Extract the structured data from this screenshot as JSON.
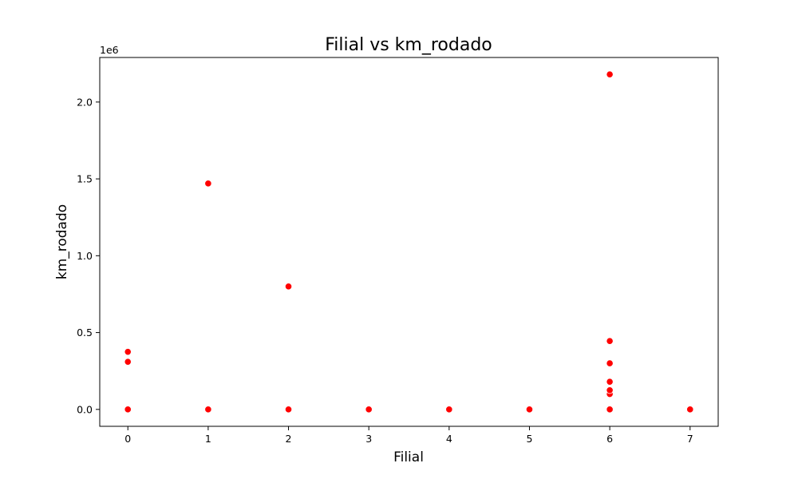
{
  "chart_data": {
    "type": "scatter",
    "title": "Filial vs km_rodado",
    "xlabel": "Filial",
    "ylabel": "km_rodado",
    "y_offset_label": "1e6",
    "xlim": [
      -0.35,
      7.35
    ],
    "ylim": [
      -0.11,
      2.29
    ],
    "y_scale_factor": 1000000,
    "x_ticks": [
      0,
      1,
      2,
      3,
      4,
      5,
      6,
      7
    ],
    "x_tick_labels": [
      "0",
      "1",
      "2",
      "3",
      "4",
      "5",
      "6",
      "7"
    ],
    "y_ticks": [
      0.0,
      0.5,
      1.0,
      1.5,
      2.0
    ],
    "y_tick_labels": [
      "0.0",
      "0.5",
      "1.0",
      "1.5",
      "2.0"
    ],
    "grid": false,
    "marker_color": "#ff0000",
    "points": [
      {
        "x": 0,
        "y": 0.0
      },
      {
        "x": 0,
        "y": 0.31
      },
      {
        "x": 0,
        "y": 0.375
      },
      {
        "x": 1,
        "y": 0.0
      },
      {
        "x": 1,
        "y": 1.47
      },
      {
        "x": 2,
        "y": 0.0
      },
      {
        "x": 2,
        "y": 0.8
      },
      {
        "x": 3,
        "y": 0.0
      },
      {
        "x": 4,
        "y": 0.0
      },
      {
        "x": 5,
        "y": 0.0
      },
      {
        "x": 6,
        "y": 0.0
      },
      {
        "x": 6,
        "y": 0.1
      },
      {
        "x": 6,
        "y": 0.125
      },
      {
        "x": 6,
        "y": 0.18
      },
      {
        "x": 6,
        "y": 0.3
      },
      {
        "x": 6,
        "y": 0.445
      },
      {
        "x": 6,
        "y": 2.18
      },
      {
        "x": 7,
        "y": 0.0
      }
    ]
  }
}
